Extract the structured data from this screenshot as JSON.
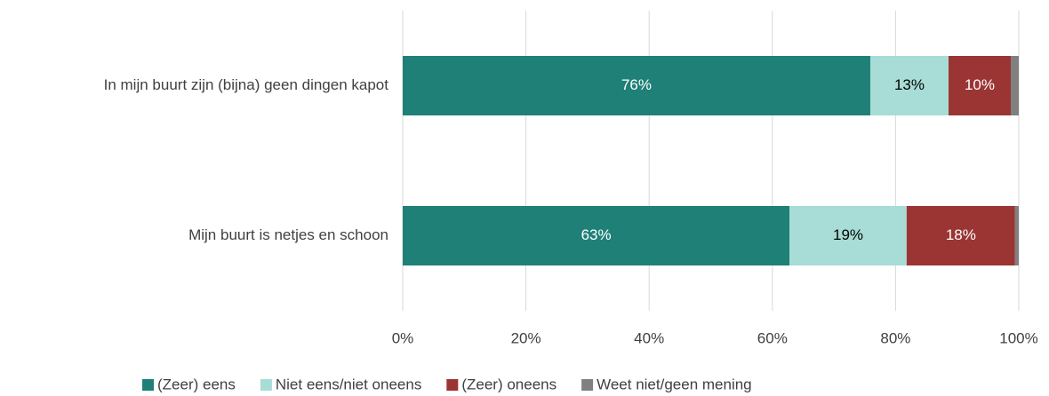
{
  "chart_data": {
    "type": "stacked_barh",
    "categories": [
      "In mijn buurt zijn (bijna) geen dingen kapot",
      "Mijn buurt is netjes en schoon"
    ],
    "series": [
      {
        "name": "(Zeer) eens",
        "color": "#1f8077",
        "values": [
          75.9,
          62.8
        ],
        "value_labels": [
          "76%",
          "63%"
        ]
      },
      {
        "name": "Niet eens/niet oneens",
        "color": "#a7ddd6",
        "values": [
          12.7,
          19.0
        ],
        "value_labels": [
          "13%",
          "19%"
        ]
      },
      {
        "name": "(Zeer) oneens",
        "color": "#9b3534",
        "values": [
          10.1,
          17.6
        ],
        "value_labels": [
          "10%",
          "18%"
        ]
      },
      {
        "name": "Weet niet/geen mening",
        "color": "#808080",
        "values": [
          1.3,
          0.6
        ]
      }
    ],
    "xlim": [
      0,
      100
    ],
    "xticks": [
      {
        "value": 0,
        "label": "0%"
      },
      {
        "value": 20,
        "label": "20%"
      },
      {
        "value": 40,
        "label": "40%"
      },
      {
        "value": 60,
        "label": "60%"
      },
      {
        "value": 80,
        "label": "80%"
      },
      {
        "value": 100,
        "label": "100%"
      }
    ],
    "grid": true,
    "legend": "bottom"
  }
}
